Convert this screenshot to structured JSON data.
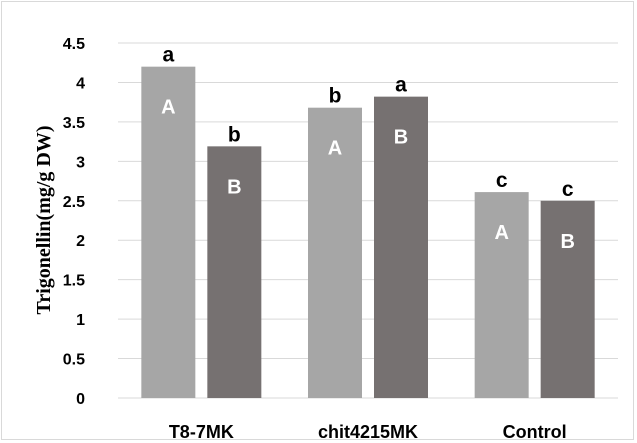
{
  "chart_data": {
    "type": "bar",
    "categories": [
      "T8-7MK",
      "chit4215MK",
      "Control"
    ],
    "series": [
      {
        "values": [
          4.2,
          3.68,
          2.61
        ],
        "color": "#a6a6a6",
        "inner_labels": [
          "A",
          "A",
          "A"
        ],
        "top_labels": [
          "a",
          "b",
          "c"
        ]
      },
      {
        "values": [
          3.19,
          3.82,
          2.5
        ],
        "color": "#767171",
        "inner_labels": [
          "B",
          "B",
          "B"
        ],
        "top_labels": [
          "b",
          "a",
          "c"
        ]
      }
    ],
    "ylabel": "Trigonellin(mg/g DW)",
    "xlabel": "",
    "title": "",
    "ylim": [
      0,
      4.5
    ],
    "yticks": [
      "0",
      "0.5",
      "1",
      "1.5",
      "2",
      "2.5",
      "3",
      "3.5",
      "4",
      "4.5"
    ],
    "grid": true
  }
}
